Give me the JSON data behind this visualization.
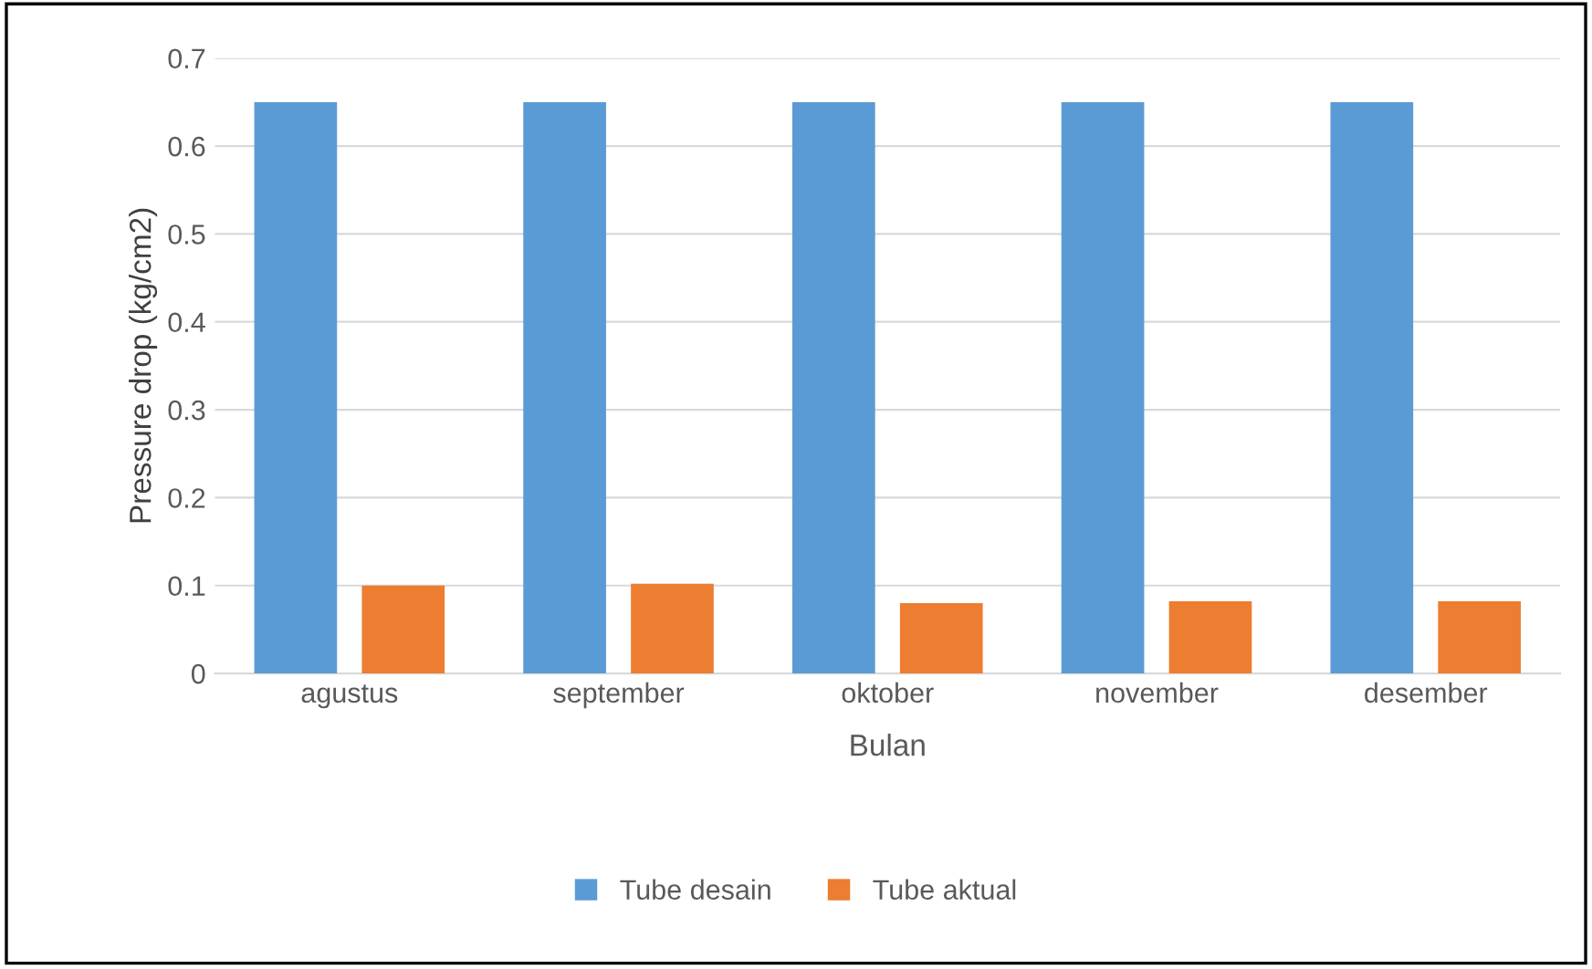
{
  "chart_data": {
    "type": "bar",
    "xlabel": "Bulan",
    "ylabel": "Pressure drop (kg/cm2)",
    "categories": [
      "agustus",
      "september",
      "oktober",
      "november",
      "desember"
    ],
    "series": [
      {
        "name": "Tube desain",
        "color": "#5b9bd5",
        "values": [
          0.65,
          0.65,
          0.65,
          0.65,
          0.65
        ]
      },
      {
        "name": "Tube aktual",
        "color": "#ed7d31",
        "values": [
          0.1,
          0.102,
          0.08,
          0.082,
          0.082
        ]
      }
    ],
    "ylim": [
      0,
      0.7
    ],
    "yticks": [
      0,
      0.1,
      0.2,
      0.3,
      0.4,
      0.5,
      0.6,
      0.7
    ],
    "grid": "y",
    "legend": "bottom"
  }
}
